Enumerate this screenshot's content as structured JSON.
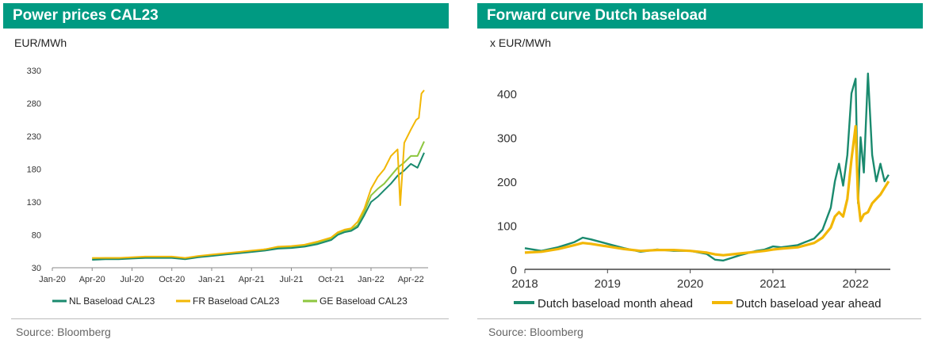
{
  "chart_data": [
    {
      "type": "line",
      "title": "Power prices CAL23",
      "ylabel": "EUR/MWh",
      "ylim": [
        30,
        330
      ],
      "yticks": [
        30,
        80,
        130,
        180,
        230,
        280,
        330
      ],
      "xlim_months": [
        0,
        28.3
      ],
      "xtick_labels": [
        "Jan-20",
        "Apr-20",
        "Jul-20",
        "Oct-20",
        "Jan-21",
        "Apr-21",
        "Jul-21",
        "Oct-21",
        "Jan-22",
        "Apr-22"
      ],
      "xtick_positions": [
        0,
        3,
        6,
        9,
        12,
        15,
        18,
        21,
        24,
        27
      ],
      "legend_position": "bottom",
      "series": [
        {
          "name": "NL Baseload CAL23",
          "color": "#1a8a6e",
          "x": [
            3.0,
            4,
            5,
            6,
            7,
            8,
            9,
            10,
            11,
            12,
            13,
            14,
            15,
            16,
            17,
            18,
            19,
            20,
            21,
            21.5,
            22,
            22.5,
            23,
            23.5,
            24,
            24.5,
            25,
            25.5,
            26,
            26.5,
            27,
            27.5,
            28.0
          ],
          "y": [
            42,
            43,
            43,
            44,
            45,
            45,
            45,
            43,
            46,
            48,
            50,
            52,
            54,
            56,
            59,
            60,
            62,
            66,
            72,
            80,
            84,
            86,
            92,
            110,
            130,
            138,
            148,
            158,
            170,
            178,
            188,
            182,
            205
          ]
        },
        {
          "name": "FR Baseload CAL23",
          "color": "#f2b705",
          "x": [
            3.0,
            4,
            5,
            6,
            7,
            8,
            9,
            10,
            11,
            12,
            13,
            14,
            15,
            16,
            17,
            18,
            19,
            20,
            21,
            21.5,
            22,
            22.5,
            23,
            23.5,
            24,
            24.5,
            25,
            25.5,
            26,
            26.2,
            26.5,
            27,
            27.4,
            27.6,
            27.8,
            28.0
          ],
          "y": [
            45,
            45,
            45,
            46,
            47,
            47,
            47,
            45,
            48,
            50,
            52,
            54,
            56,
            58,
            62,
            63,
            65,
            70,
            76,
            84,
            88,
            90,
            100,
            120,
            150,
            168,
            180,
            200,
            210,
            125,
            220,
            240,
            255,
            258,
            295,
            300
          ]
        },
        {
          "name": "GE Baseload CAL23",
          "color": "#8dc63f",
          "x": [
            3.0,
            4,
            5,
            6,
            7,
            8,
            9,
            10,
            11,
            12,
            13,
            14,
            15,
            16,
            17,
            18,
            19,
            20,
            21,
            21.5,
            22,
            22.5,
            23,
            23.5,
            24,
            24.5,
            25,
            25.5,
            26,
            26.5,
            27,
            27.5,
            28.0
          ],
          "y": [
            44,
            45,
            45,
            45,
            46,
            46,
            46,
            44,
            47,
            49,
            51,
            53,
            55,
            58,
            61,
            62,
            64,
            68,
            74,
            82,
            86,
            88,
            95,
            115,
            140,
            150,
            158,
            170,
            182,
            190,
            200,
            200,
            222
          ]
        }
      ],
      "source": "Source: Bloomberg"
    },
    {
      "type": "line",
      "title": "Forward curve Dutch baseload",
      "ylabel": "x EUR/MWh",
      "ylim": [
        0,
        450
      ],
      "yticks": [
        0,
        100,
        200,
        300,
        400
      ],
      "xlim": [
        2018,
        2022.42
      ],
      "xticks": [
        2018,
        2019,
        2020,
        2021,
        2022
      ],
      "legend_position": "bottom",
      "series": [
        {
          "name": "Dutch baseload month ahead",
          "color": "#1a8a6e",
          "x": [
            2018.0,
            2018.2,
            2018.4,
            2018.6,
            2018.7,
            2018.8,
            2019.0,
            2019.2,
            2019.4,
            2019.6,
            2019.8,
            2020.0,
            2020.2,
            2020.3,
            2020.4,
            2020.5,
            2020.6,
            2020.8,
            2020.9,
            2021.0,
            2021.1,
            2021.3,
            2021.5,
            2021.6,
            2021.7,
            2021.75,
            2021.8,
            2021.85,
            2021.9,
            2021.95,
            2022.0,
            2022.03,
            2022.06,
            2022.1,
            2022.15,
            2022.2,
            2022.25,
            2022.3,
            2022.35,
            2022.4
          ],
          "y": [
            48,
            42,
            50,
            62,
            72,
            68,
            58,
            48,
            40,
            45,
            42,
            42,
            35,
            22,
            20,
            26,
            32,
            42,
            45,
            52,
            50,
            55,
            70,
            90,
            140,
            200,
            240,
            190,
            260,
            400,
            433,
            150,
            300,
            220,
            445,
            260,
            200,
            240,
            200,
            215
          ]
        },
        {
          "name": "Dutch baseload year ahead",
          "color": "#f2b705",
          "x": [
            2018.0,
            2018.2,
            2018.4,
            2018.6,
            2018.7,
            2018.8,
            2019.0,
            2019.2,
            2019.4,
            2019.6,
            2019.8,
            2020.0,
            2020.2,
            2020.3,
            2020.4,
            2020.5,
            2020.6,
            2020.8,
            2020.9,
            2021.0,
            2021.1,
            2021.3,
            2021.5,
            2021.6,
            2021.7,
            2021.75,
            2021.8,
            2021.85,
            2021.9,
            2021.95,
            2022.0,
            2022.03,
            2022.06,
            2022.1,
            2022.15,
            2022.2,
            2022.25,
            2022.3,
            2022.35,
            2022.4
          ],
          "y": [
            38,
            40,
            46,
            55,
            60,
            58,
            52,
            46,
            42,
            44,
            44,
            42,
            38,
            34,
            32,
            34,
            36,
            40,
            42,
            45,
            47,
            50,
            60,
            72,
            95,
            120,
            130,
            120,
            160,
            250,
            325,
            160,
            110,
            125,
            130,
            150,
            160,
            170,
            185,
            200
          ]
        }
      ],
      "source": "Source: Bloomberg"
    }
  ]
}
